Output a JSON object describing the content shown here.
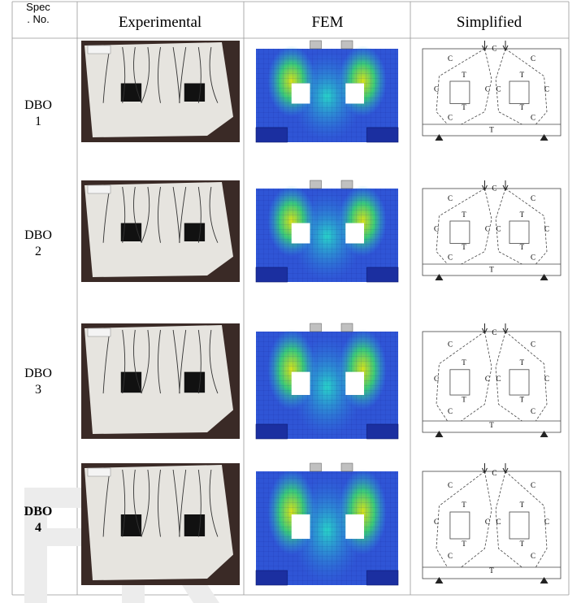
{
  "table": {
    "header": [
      [
        "Spec",
        ". No."
      ],
      "Experimental",
      "FEM",
      "Simplified"
    ],
    "rows": [
      {
        "label": [
          "DBO",
          "1"
        ],
        "bold": false
      },
      {
        "label": [
          "DBO",
          "2"
        ],
        "bold": false
      },
      {
        "label": [
          "DBO",
          "3"
        ],
        "bold": false
      },
      {
        "label": [
          "DBO",
          "4"
        ],
        "bold": true
      }
    ],
    "diagram_labels": {
      "compression": "C",
      "tension": "T"
    }
  }
}
